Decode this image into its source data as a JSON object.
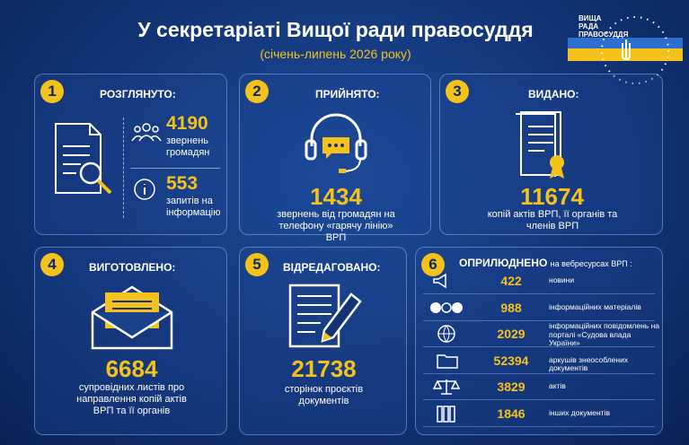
{
  "header": {
    "title": "У секретаріаті Вищої ради правосуддя",
    "subtitle": "(січень-липень 2026 року)"
  },
  "logo": {
    "lines": [
      "ВИЩА",
      "РАДА",
      "ПРАВОСУДДЯ"
    ]
  },
  "cards": [
    {
      "badge": "1",
      "heading": "РОЗГЛЯНУТО:",
      "items": [
        {
          "value": "4190",
          "text": "звернень громадян"
        },
        {
          "value": "553",
          "text": "запитів на інформацію"
        }
      ]
    },
    {
      "badge": "2",
      "heading": "ПРИЙНЯТО:",
      "value": "1434",
      "text": "звернень від громадян на телефону «гарячу лінію» ВРП"
    },
    {
      "badge": "3",
      "heading": "ВИДАНО:",
      "value": "11674",
      "text": "копій актів ВРП, її органів та членів ВРП"
    },
    {
      "badge": "4",
      "heading": "ВИГОТОВЛЕНО:",
      "value": "6684",
      "text": "супровідних листів про направлення копій актів ВРП та її органів"
    },
    {
      "badge": "5",
      "heading": "ВІДРЕДАГОВАНО:",
      "value": "21738",
      "text": "сторінок проєктів документів"
    },
    {
      "badge": "6",
      "heading": "ОПРИЛЮДНЕНО",
      "subheading": "на вебресурсах ВРП :",
      "rows": [
        {
          "value": "422",
          "text": "новини"
        },
        {
          "value": "988",
          "text": "інформаційних матеріалів"
        },
        {
          "value": "2029",
          "text": "інформаційних повідомлень на порталі «Судова влада України»"
        },
        {
          "value": "52394",
          "text": "аркушів знеособлених документів"
        },
        {
          "value": "3829",
          "text": "актів"
        },
        {
          "value": "1846",
          "text": "інших документів"
        }
      ]
    }
  ]
}
